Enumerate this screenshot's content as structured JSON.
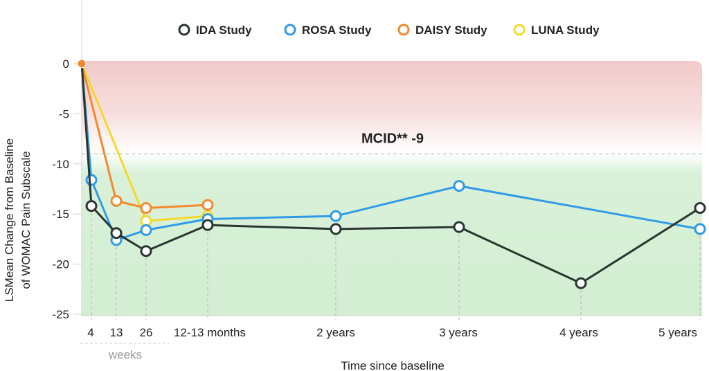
{
  "chart_data": {
    "type": "line",
    "xlabel": "Time since baseline",
    "ylabel_lines": [
      "LSMean Change from Baseline",
      "of WOMAC Pain Subscale"
    ],
    "ylim": [
      -25,
      0
    ],
    "yticks": [
      0,
      -5,
      -10,
      -15,
      -20,
      -25
    ],
    "x_ticks": [
      {
        "label": "4",
        "value": "4 weeks"
      },
      {
        "label": "13",
        "value": "13 weeks"
      },
      {
        "label": "26",
        "value": "26 weeks"
      },
      {
        "label": "12-13 months",
        "value": "12-13 months"
      },
      {
        "label": "2 years",
        "value": "2 years"
      },
      {
        "label": "3 years",
        "value": "3 years"
      },
      {
        "label": "4 years",
        "value": "4 years"
      },
      {
        "label": "5 years",
        "value": "5 years"
      }
    ],
    "x_group_label": "weeks",
    "grid": false,
    "legend_position": "top",
    "mcid": {
      "label": "MCID** -9",
      "value": -9
    },
    "zones": {
      "above_mcid_color": "#f4cccc",
      "below_mcid_color": "#d6f0d6"
    },
    "series": [
      {
        "name": "IDA Study",
        "color": "#2a3530",
        "points": [
          [
            "baseline",
            0
          ],
          [
            "4 weeks",
            -14.2
          ],
          [
            "13 weeks",
            -16.9
          ],
          [
            "26 weeks",
            -18.7
          ],
          [
            "12-13 months",
            -16.1
          ],
          [
            "2 years",
            -16.5
          ],
          [
            "3 years",
            -16.3
          ],
          [
            "4 years",
            -21.9
          ],
          [
            "5 years",
            -14.4
          ]
        ]
      },
      {
        "name": "ROSA Study",
        "color": "#2f9ae8",
        "points": [
          [
            "baseline",
            0
          ],
          [
            "4 weeks",
            -11.6
          ],
          [
            "13 weeks",
            -17.6
          ],
          [
            "26 weeks",
            -16.6
          ],
          [
            "12-13 months",
            -15.5
          ],
          [
            "2 years",
            -15.2
          ],
          [
            "3 years",
            -12.2
          ],
          [
            "5 years",
            -16.5
          ]
        ]
      },
      {
        "name": "DAISY Study",
        "color": "#f28a2e",
        "points": [
          [
            "baseline",
            0
          ],
          [
            "13 weeks",
            -13.7
          ],
          [
            "26 weeks",
            -14.4
          ],
          [
            "12-13 months",
            -14.1
          ]
        ]
      },
      {
        "name": "LUNA Study",
        "color": "#f5d92a",
        "points": [
          [
            "baseline",
            0
          ],
          [
            "26 weeks",
            -15.7
          ],
          [
            "12-13 months",
            -15.2
          ]
        ]
      }
    ],
    "baseline_point_color": "#f28a2e"
  }
}
